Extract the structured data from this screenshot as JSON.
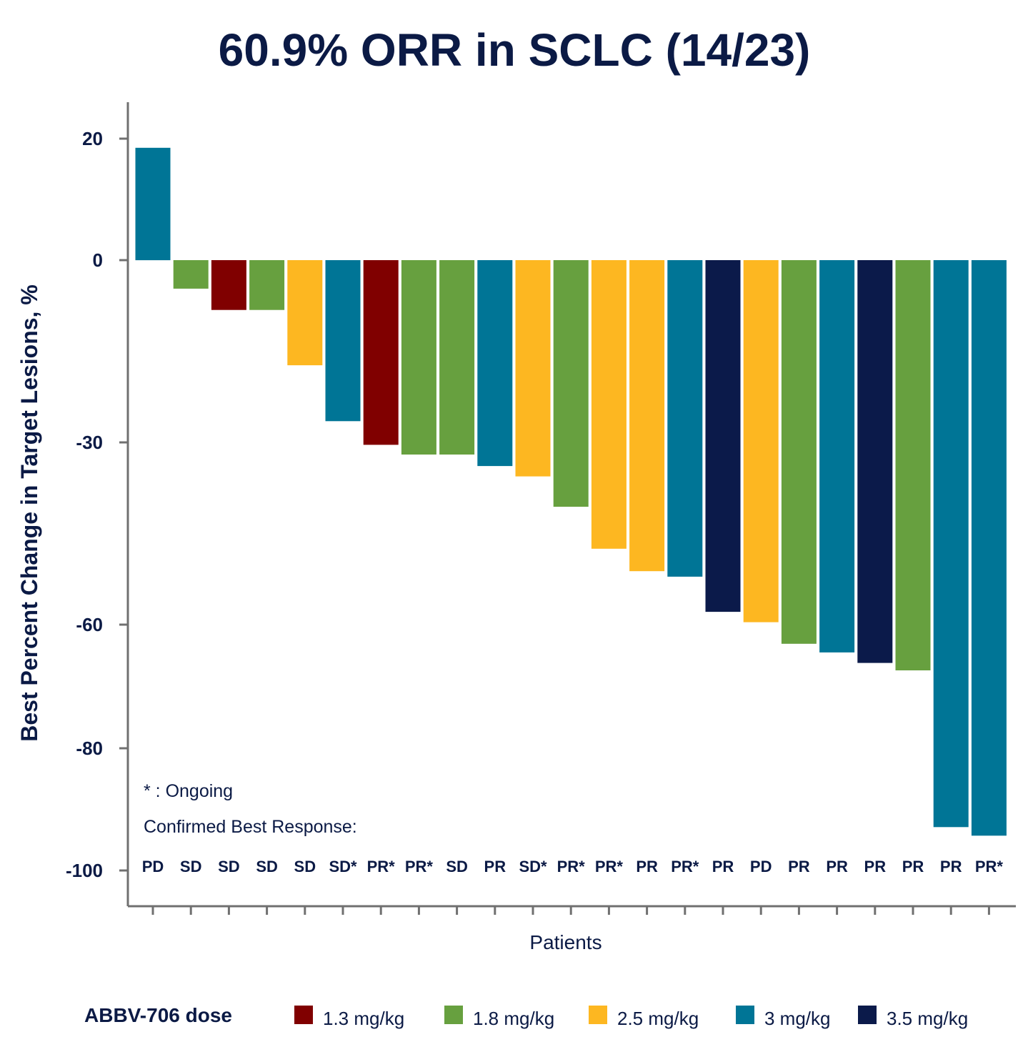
{
  "chart_data": {
    "type": "bar",
    "title": "60.9% ORR in SCLC (14/23)",
    "xlabel": "Patients",
    "ylabel": "Best Percent Change in Target Lesions, %",
    "yticks": [
      20,
      0,
      -30,
      -60,
      -80,
      -100
    ],
    "ylim": [
      -106,
      26
    ],
    "grid": false,
    "notes": {
      "ongoing": "* : Ongoing",
      "confirmed": "Confirmed Best Response:"
    },
    "dose_colors": {
      "1.3 mg/kg": "#800000",
      "1.8 mg/kg": "#67a03f",
      "2.5 mg/kg": "#fdb721",
      "3 mg/kg": "#007596",
      "3.5 mg/kg": "#0b1a4a"
    },
    "legend": {
      "title": "ABBV-706 dose",
      "placement": "bottom",
      "entries": [
        "1.3 mg/kg",
        "1.8 mg/kg",
        "2.5 mg/kg",
        "3 mg/kg",
        "3.5 mg/kg"
      ]
    },
    "response_labels": [
      "PD",
      "SD",
      "SD",
      "SD",
      "SD",
      "SD*",
      "PR*",
      "PR*",
      "SD",
      "PR",
      "SD*",
      "PR*",
      "PR*",
      "PR",
      "PR*",
      "PR",
      "PD",
      "PR",
      "PR",
      "PR",
      "PR",
      "PR",
      "PR*"
    ],
    "bars": [
      {
        "value": 18.5,
        "dose": "3 mg/kg"
      },
      {
        "value": -4.7,
        "dose": "1.8 mg/kg"
      },
      {
        "value": -8.2,
        "dose": "1.3 mg/kg"
      },
      {
        "value": -8.2,
        "dose": "1.8 mg/kg"
      },
      {
        "value": -17.3,
        "dose": "2.5 mg/kg"
      },
      {
        "value": -26.5,
        "dose": "3 mg/kg"
      },
      {
        "value": -30.4,
        "dose": "1.3 mg/kg"
      },
      {
        "value": -32.0,
        "dose": "1.8 mg/kg"
      },
      {
        "value": -32.0,
        "dose": "1.8 mg/kg"
      },
      {
        "value": -33.9,
        "dose": "3 mg/kg"
      },
      {
        "value": -35.6,
        "dose": "2.5 mg/kg"
      },
      {
        "value": -40.6,
        "dose": "1.8 mg/kg"
      },
      {
        "value": -47.5,
        "dose": "2.5 mg/kg"
      },
      {
        "value": -51.2,
        "dose": "2.5 mg/kg"
      },
      {
        "value": -52.1,
        "dose": "3 mg/kg"
      },
      {
        "value": -57.9,
        "dose": "3.5 mg/kg"
      },
      {
        "value": -59.6,
        "dose": "2.5 mg/kg"
      },
      {
        "value": -63.1,
        "dose": "1.8 mg/kg"
      },
      {
        "value": -64.5,
        "dose": "3 mg/kg"
      },
      {
        "value": -66.2,
        "dose": "3.5 mg/kg"
      },
      {
        "value": -67.4,
        "dose": "1.8 mg/kg"
      },
      {
        "value": -92.9,
        "dose": "3 mg/kg"
      },
      {
        "value": -94.3,
        "dose": "3 mg/kg"
      }
    ]
  }
}
